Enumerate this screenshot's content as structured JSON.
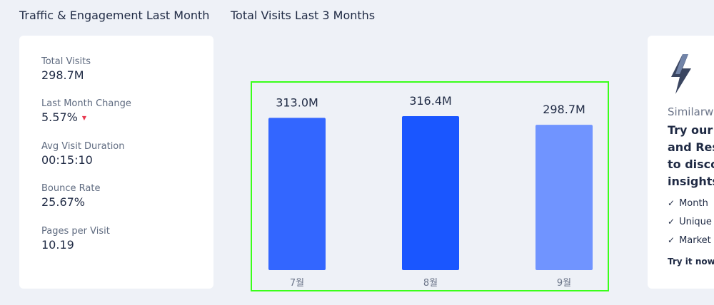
{
  "headings": {
    "traffic": "Traffic & Engagement Last Month",
    "visits": "Total Visits Last 3 Months"
  },
  "stats": [
    {
      "label": "Total Visits",
      "value": "298.7M"
    },
    {
      "label": "Last Month Change",
      "value": "5.57%",
      "trend": "down"
    },
    {
      "label": "Avg Visit Duration",
      "value": "00:15:10"
    },
    {
      "label": "Bounce Rate",
      "value": "25.67%"
    },
    {
      "label": "Pages per Visit",
      "value": "10.19"
    }
  ],
  "chart_data": {
    "type": "bar",
    "title": "Total Visits Last 3 Months",
    "categories": [
      "7월",
      "8월",
      "9월"
    ],
    "values": [
      313.0,
      316.4,
      298.7
    ],
    "value_labels": [
      "313.0M",
      "316.4M",
      "298.7M"
    ],
    "colors": [
      "#3366ff",
      "#1a56ff",
      "#7094ff"
    ],
    "ylabel": "",
    "xlabel": "",
    "grid": false,
    "legend": "none"
  },
  "promo": {
    "brand": "Similarw",
    "headline": [
      "Try our I",
      "and Res",
      "to disco",
      "insights"
    ],
    "checklist": [
      "Month",
      "Unique",
      "Market"
    ],
    "cta": "Try it now"
  },
  "colors": {
    "background": "#eef1f7",
    "card": "#ffffff",
    "trend_down": "#e8384f",
    "highlight_frame": "#39ff1a"
  }
}
